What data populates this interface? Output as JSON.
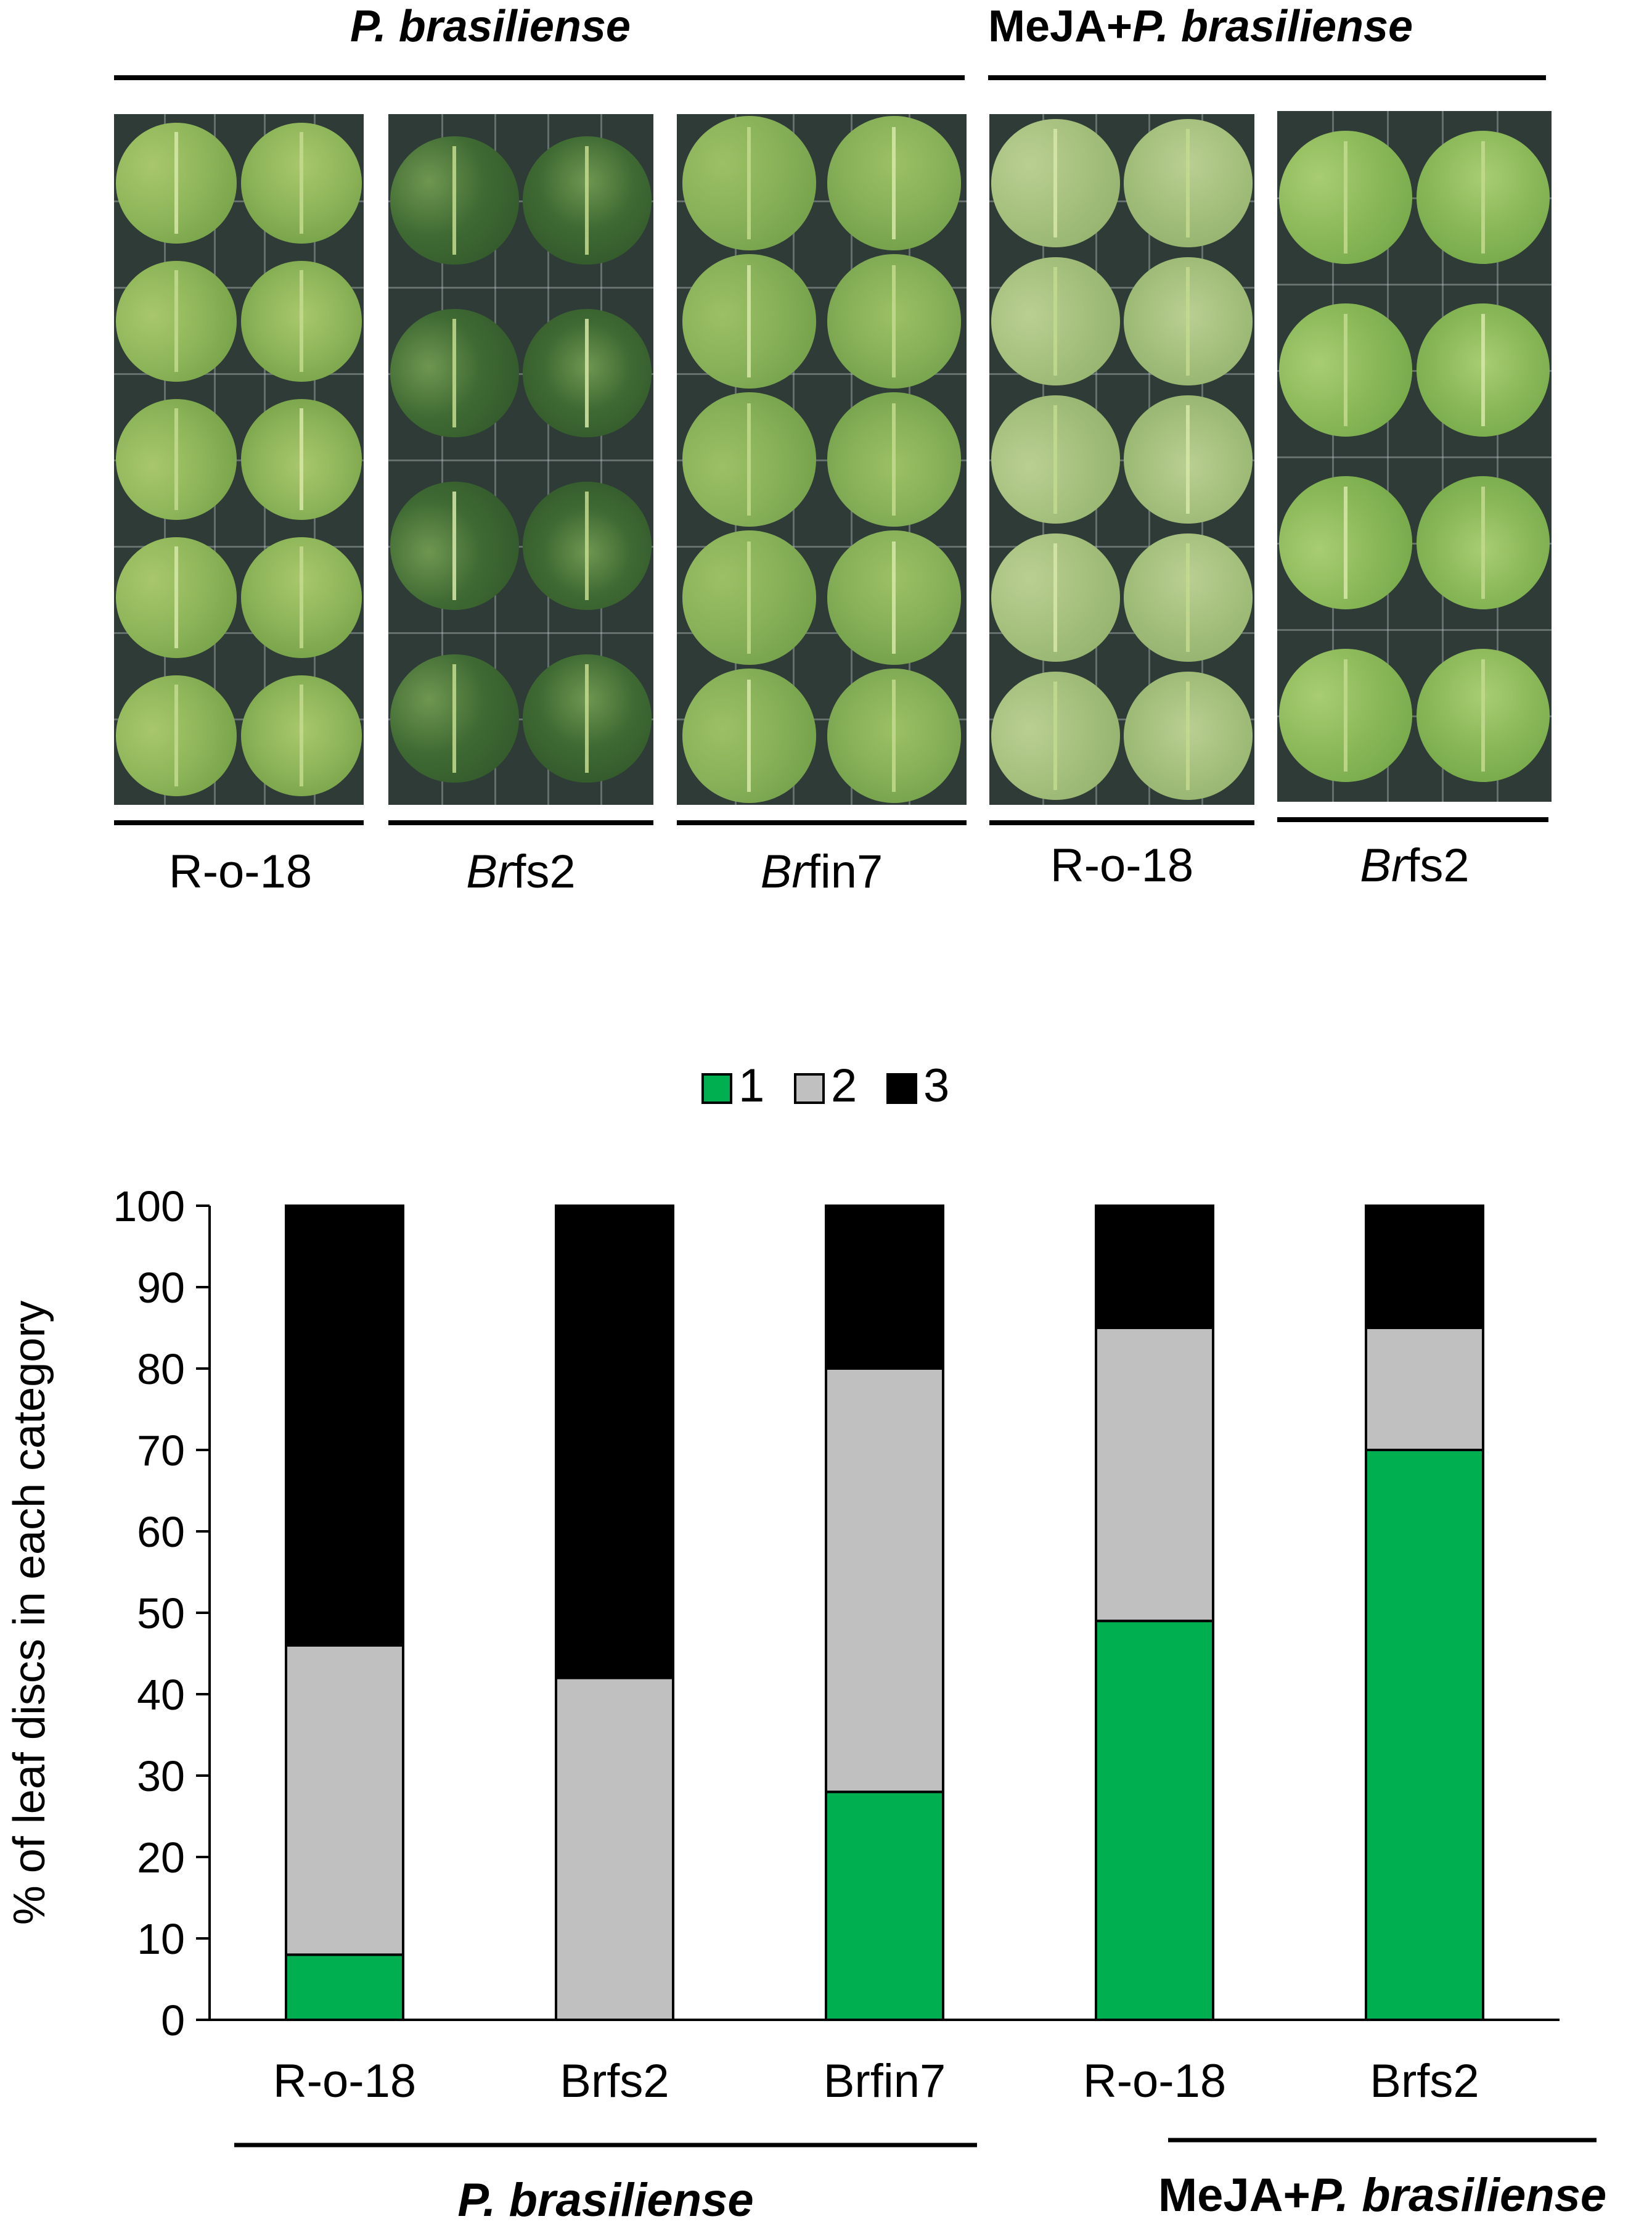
{
  "photo_section": {
    "group_headers": [
      {
        "prefix": "",
        "italic": "P. brasiliense"
      },
      {
        "prefix": "MeJA+",
        "italic": "P. brasiliense"
      }
    ],
    "panels": [
      {
        "italic": "",
        "rest": "R-o-18"
      },
      {
        "italic": "Br",
        "rest": "fs2"
      },
      {
        "italic": "Br",
        "rest": "fin7"
      },
      {
        "italic": "",
        "rest": "R-o-18"
      },
      {
        "italic": "Br",
        "rest": "fs2"
      }
    ]
  },
  "chart_data": {
    "type": "bar",
    "stacked": true,
    "categories": [
      "R-o-18",
      "Brfs2",
      "Brfin7",
      "R-o-18",
      "Brfs2"
    ],
    "series": [
      {
        "name": "1",
        "color": "#00b050",
        "values": [
          8,
          0,
          28,
          49,
          70
        ]
      },
      {
        "name": "2",
        "color": "#c0c0c0",
        "values": [
          38,
          42,
          52,
          36,
          15
        ]
      },
      {
        "name": "3",
        "color": "#000000",
        "values": [
          54,
          58,
          20,
          15,
          15
        ]
      }
    ],
    "ylabel": "% of leaf discs in each category",
    "ylim": [
      0,
      100
    ],
    "yticks": [
      0,
      10,
      20,
      30,
      40,
      50,
      60,
      70,
      80,
      90,
      100
    ],
    "legend_position": "top-center",
    "group_labels": [
      {
        "prefix": "",
        "italic": "P. brasiliense"
      },
      {
        "prefix": "MeJA+",
        "italic": "P. brasiliense"
      }
    ]
  }
}
